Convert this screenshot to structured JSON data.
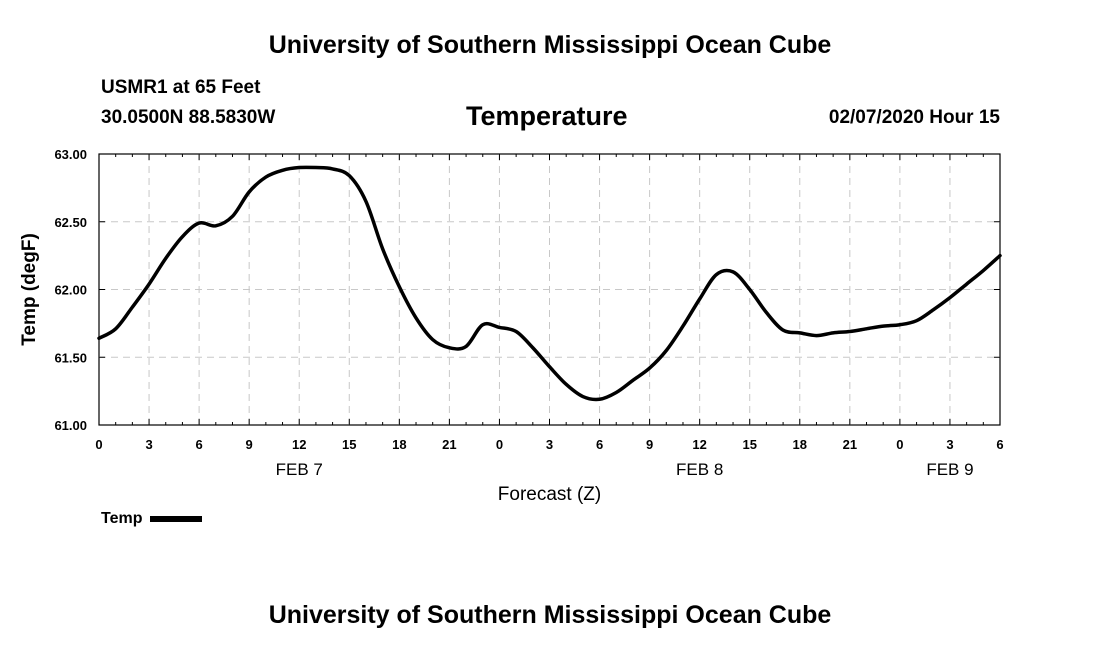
{
  "header": {
    "title": "University of Southern Mississippi Ocean Cube",
    "station": "USMR1 at 65 Feet",
    "coordinates": "30.0500N 88.5830W",
    "variable": "Temperature",
    "timestamp": "02/07/2020 Hour 15"
  },
  "footer": {
    "title": "University of Southern Mississippi Ocean Cube"
  },
  "legend": {
    "label": "Temp"
  },
  "colors": {
    "line": "#000000",
    "grid": "#c8c8c8",
    "background": "#ffffff"
  },
  "chart_data": {
    "type": "line",
    "xlabel": "Forecast (Z)",
    "ylabel": "Temp (degF)",
    "xlim": [
      "02/07/2020 00Z",
      "02/09/2020 06Z"
    ],
    "ylim": [
      61.0,
      63.0
    ],
    "grid": true,
    "legend_position": "bottom-left",
    "x_ticks": [
      "0",
      "3",
      "6",
      "9",
      "12",
      "15",
      "18",
      "21",
      "0",
      "3",
      "6",
      "9",
      "12",
      "15",
      "18",
      "21",
      "0",
      "3",
      "6"
    ],
    "y_ticks": [
      "61.00",
      "61.50",
      "62.00",
      "62.50",
      "63.00"
    ],
    "date_labels": [
      {
        "label": "FEB 7",
        "at": "02/07/2020 12Z"
      },
      {
        "label": "FEB 8",
        "at": "02/08/2020 12Z"
      },
      {
        "label": "FEB 9",
        "at": "02/09/2020 03Z"
      }
    ],
    "series": [
      {
        "name": "Temp",
        "x": [
          "02/07/2020 00Z",
          "02/07/2020 01Z",
          "02/07/2020 02Z",
          "02/07/2020 03Z",
          "02/07/2020 04Z",
          "02/07/2020 05Z",
          "02/07/2020 06Z",
          "02/07/2020 07Z",
          "02/07/2020 08Z",
          "02/07/2020 09Z",
          "02/07/2020 10Z",
          "02/07/2020 11Z",
          "02/07/2020 12Z",
          "02/07/2020 13Z",
          "02/07/2020 14Z",
          "02/07/2020 15Z",
          "02/07/2020 16Z",
          "02/07/2020 17Z",
          "02/07/2020 18Z",
          "02/07/2020 19Z",
          "02/07/2020 20Z",
          "02/07/2020 21Z",
          "02/07/2020 22Z",
          "02/07/2020 23Z",
          "02/08/2020 00Z",
          "02/08/2020 01Z",
          "02/08/2020 02Z",
          "02/08/2020 03Z",
          "02/08/2020 04Z",
          "02/08/2020 05Z",
          "02/08/2020 06Z",
          "02/08/2020 07Z",
          "02/08/2020 08Z",
          "02/08/2020 09Z",
          "02/08/2020 10Z",
          "02/08/2020 11Z",
          "02/08/2020 12Z",
          "02/08/2020 13Z",
          "02/08/2020 14Z",
          "02/08/2020 15Z",
          "02/08/2020 16Z",
          "02/08/2020 17Z",
          "02/08/2020 18Z",
          "02/08/2020 19Z",
          "02/08/2020 20Z",
          "02/08/2020 21Z",
          "02/08/2020 22Z",
          "02/08/2020 23Z",
          "02/09/2020 00Z",
          "02/09/2020 01Z",
          "02/09/2020 02Z",
          "02/09/2020 03Z",
          "02/09/2020 04Z",
          "02/09/2020 05Z",
          "02/09/2020 06Z"
        ],
        "values": [
          61.64,
          61.71,
          61.87,
          62.04,
          62.23,
          62.39,
          62.49,
          62.47,
          62.54,
          62.72,
          62.83,
          62.88,
          62.9,
          62.9,
          62.89,
          62.84,
          62.65,
          62.3,
          62.02,
          61.79,
          61.63,
          61.57,
          61.58,
          61.74,
          61.72,
          61.69,
          61.57,
          61.43,
          61.3,
          61.21,
          61.19,
          61.24,
          61.33,
          61.42,
          61.55,
          61.73,
          61.93,
          62.11,
          62.13,
          62.0,
          61.83,
          61.7,
          61.68,
          61.66,
          61.68,
          61.69,
          61.71,
          61.73,
          61.74,
          61.77,
          61.85,
          61.94,
          62.04,
          62.14,
          62.25
        ]
      }
    ]
  }
}
